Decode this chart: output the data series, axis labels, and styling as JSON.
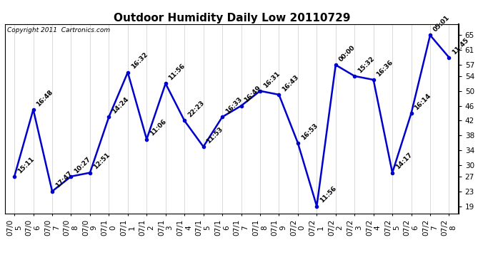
{
  "title": "Outdoor Humidity Daily Low 20110729",
  "copyright": "Copyright 2011  Cartronics.com",
  "dates": [
    "07/05",
    "07/06",
    "07/07",
    "07/08",
    "07/09",
    "07/10",
    "07/11",
    "07/12",
    "07/13",
    "07/14",
    "07/15",
    "07/16",
    "07/17",
    "07/18",
    "07/19",
    "07/20",
    "07/21",
    "07/22",
    "07/23",
    "07/24",
    "07/25",
    "07/26",
    "07/27",
    "07/28"
  ],
  "values": [
    27,
    45,
    23,
    27,
    28,
    43,
    55,
    37,
    52,
    42,
    35,
    43,
    46,
    50,
    49,
    36,
    19,
    57,
    54,
    53,
    28,
    44,
    65,
    59
  ],
  "labels": [
    "15:11",
    "16:48",
    "17:47",
    "10:27",
    "12:51",
    "14:24",
    "16:32",
    "11:06",
    "11:56",
    "22:23",
    "11:53",
    "16:33",
    "16:49",
    "16:31",
    "16:43",
    "16:53",
    "11:56",
    "00:00",
    "15:32",
    "16:36",
    "14:17",
    "16:14",
    "05:01",
    "11:45"
  ],
  "line_color": "#0000cc",
  "marker_color": "#0000cc",
  "bg_color": "#ffffff",
  "grid_color": "#cccccc",
  "ylim": [
    17,
    68
  ],
  "yticks": [
    19,
    23,
    27,
    30,
    34,
    38,
    42,
    46,
    50,
    54,
    57,
    61,
    65
  ],
  "title_fontsize": 11,
  "label_fontsize": 6.5,
  "tick_fontsize": 7.5,
  "copyright_fontsize": 6.5
}
